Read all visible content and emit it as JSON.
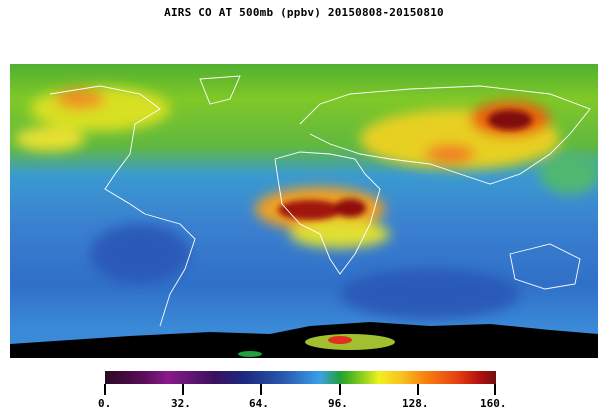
{
  "title": "AIRS CO AT 500mb (ppbv) 20150808-20150810",
  "colorbar": {
    "range": [
      0,
      160
    ],
    "tick_labels": [
      "0.",
      "32.",
      "64.",
      "96.",
      "128.",
      "160."
    ],
    "colors": [
      "#2a0a24",
      "#8a1a8a",
      "#1a2a80",
      "#3aa0e8",
      "#20a040",
      "#f0f020",
      "#f88010",
      "#701010"
    ]
  },
  "map": {
    "projection": "equirectangular global",
    "coastline_color": "#ffffff",
    "missing_data_color": "#000000"
  }
}
